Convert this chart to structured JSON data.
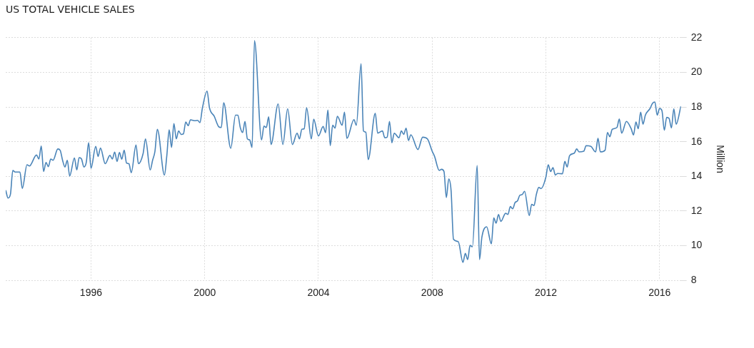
{
  "chart_data": {
    "type": "line",
    "title": "US TOTAL VEHICLE SALES",
    "ylabel": "Million",
    "xlim": [
      "1993-01",
      "2016-10"
    ],
    "xticks": [
      "1996",
      "2000",
      "2004",
      "2008",
      "2012",
      "2016"
    ],
    "ylim": [
      8,
      22
    ],
    "yticks": [
      8,
      10,
      12,
      14,
      16,
      18,
      20,
      22
    ],
    "grid": true,
    "legend": false,
    "marker": "none",
    "line_style": "solid",
    "series": [
      {
        "color": "#4a84b8",
        "x": [
          "1993-01",
          "1993-02",
          "1993-03",
          "1993-04",
          "1993-05",
          "1993-07",
          "1993-08",
          "1993-10",
          "1993-11",
          "1994-02",
          "1994-03",
          "1994-04",
          "1994-05",
          "1994-06",
          "1994-07",
          "1994-08",
          "1994-09",
          "1994-11",
          "1994-12",
          "1995-01",
          "1995-02",
          "1995-03",
          "1995-04",
          "1995-06",
          "1995-07",
          "1995-08",
          "1995-09",
          "1995-10",
          "1995-11",
          "1995-12",
          "1996-01",
          "1996-03",
          "1996-04",
          "1996-05",
          "1996-07",
          "1996-09",
          "1996-10",
          "1996-11",
          "1996-12",
          "1997-01",
          "1997-02",
          "1997-03",
          "1997-04",
          "1997-05",
          "1997-06",
          "1997-08",
          "1997-09",
          "1997-11",
          "1997-12",
          "1998-02",
          "1998-03",
          "1998-04",
          "1998-05",
          "1998-08",
          "1998-09",
          "1998-10",
          "1998-11",
          "1998-12",
          "1999-01",
          "1999-02",
          "1999-03",
          "1999-04",
          "1999-05",
          "1999-06",
          "1999-07",
          "1999-09",
          "1999-10",
          "1999-11",
          "1999-12",
          "2000-02",
          "2000-03",
          "2000-05",
          "2000-07",
          "2000-08",
          "2000-09",
          "2000-12",
          "2001-02",
          "2001-03",
          "2001-04",
          "2001-05",
          "2001-06",
          "2001-07",
          "2001-08",
          "2001-09",
          "2001-10",
          "2002-01",
          "2002-02",
          "2002-03",
          "2002-04",
          "2002-05",
          "2002-08",
          "2002-10",
          "2002-12",
          "2003-02",
          "2003-04",
          "2003-05",
          "2003-06",
          "2003-07",
          "2003-08",
          "2003-10",
          "2003-11",
          "2004-01",
          "2004-03",
          "2004-04",
          "2004-05",
          "2004-06",
          "2004-07",
          "2004-08",
          "2004-09",
          "2004-11",
          "2004-12",
          "2005-01",
          "2005-04",
          "2005-05",
          "2005-07",
          "2005-08",
          "2005-09",
          "2005-10",
          "2006-01",
          "2006-02",
          "2006-04",
          "2006-05",
          "2006-06",
          "2006-07",
          "2006-08",
          "2006-09",
          "2006-11",
          "2006-12",
          "2007-01",
          "2007-02",
          "2007-03",
          "2007-04",
          "2007-07",
          "2007-09",
          "2007-11",
          "2008-01",
          "2008-02",
          "2008-04",
          "2008-05",
          "2008-06",
          "2008-07",
          "2008-08",
          "2008-09",
          "2008-10",
          "2008-12",
          "2009-02",
          "2009-03",
          "2009-04",
          "2009-05",
          "2009-06",
          "2009-08",
          "2009-09",
          "2009-10",
          "2009-12",
          "2010-02",
          "2010-03",
          "2010-04",
          "2010-05",
          "2010-06",
          "2010-08",
          "2010-09",
          "2010-10",
          "2010-11",
          "2010-12",
          "2011-01",
          "2011-02",
          "2011-03",
          "2011-04",
          "2011-06",
          "2011-07",
          "2011-08",
          "2011-09",
          "2011-10",
          "2011-11",
          "2012-01",
          "2012-02",
          "2012-03",
          "2012-04",
          "2012-05",
          "2012-06",
          "2012-08",
          "2012-09",
          "2012-10",
          "2012-11",
          "2013-01",
          "2013-02",
          "2013-03",
          "2013-05",
          "2013-06",
          "2013-08",
          "2013-10",
          "2013-11",
          "2013-12",
          "2014-02",
          "2014-03",
          "2014-04",
          "2014-05",
          "2014-07",
          "2014-08",
          "2014-09",
          "2014-11",
          "2015-01",
          "2015-02",
          "2015-03",
          "2015-04",
          "2015-05",
          "2015-06",
          "2015-07",
          "2015-09",
          "2015-10",
          "2015-11",
          "2015-12",
          "2016-01",
          "2016-02",
          "2016-03",
          "2016-04",
          "2016-05",
          "2016-06",
          "2016-07",
          "2016-08",
          "2016-10"
        ],
        "values": [
          13.2,
          12.75,
          12.97,
          14.34,
          14.25,
          14.25,
          13.3,
          14.67,
          14.6,
          15.23,
          15.0,
          15.75,
          14.28,
          14.8,
          14.56,
          15.0,
          14.93,
          15.58,
          15.5,
          14.93,
          14.54,
          14.93,
          14.02,
          15.06,
          14.37,
          15.08,
          15.0,
          14.54,
          14.8,
          15.94,
          14.47,
          15.73,
          15.15,
          15.64,
          14.73,
          15.21,
          15.0,
          15.4,
          14.86,
          15.38,
          14.99,
          15.51,
          14.77,
          14.73,
          14.21,
          15.81,
          14.73,
          15.32,
          16.16,
          14.37,
          14.93,
          15.45,
          16.72,
          14.08,
          15.19,
          16.68,
          15.67,
          17.04,
          16.16,
          16.62,
          16.42,
          16.45,
          17.14,
          16.92,
          17.26,
          17.21,
          17.23,
          17.1,
          17.92,
          18.92,
          17.96,
          17.47,
          16.85,
          16.82,
          18.25,
          15.62,
          17.53,
          17.53,
          16.82,
          16.53,
          17.17,
          16.16,
          16.1,
          15.67,
          21.83,
          16.1,
          16.9,
          16.82,
          17.43,
          15.84,
          18.18,
          15.84,
          17.9,
          15.84,
          16.49,
          16.16,
          16.72,
          16.75,
          17.96,
          16.16,
          17.3,
          16.33,
          16.88,
          16.52,
          17.83,
          15.77,
          16.95,
          16.78,
          17.47,
          16.95,
          17.7,
          16.19,
          17.27,
          16.95,
          20.5,
          16.62,
          16.55,
          14.97,
          17.64,
          16.49,
          16.62,
          16.23,
          16.26,
          17.17,
          15.94,
          16.49,
          16.23,
          16.62,
          16.42,
          16.78,
          16.07,
          16.4,
          15.55,
          16.26,
          16.16,
          15.45,
          15.16,
          14.34,
          14.41,
          14.28,
          12.78,
          13.85,
          13.17,
          10.37,
          10.24,
          9.04,
          9.56,
          9.2,
          10.02,
          9.94,
          14.63,
          9.2,
          10.5,
          11.09,
          10.11,
          11.6,
          11.3,
          11.8,
          11.4,
          11.87,
          11.8,
          12.26,
          12.13,
          12.49,
          12.58,
          12.91,
          12.95,
          13.14,
          11.74,
          12.39,
          12.32,
          12.97,
          13.36,
          13.3,
          13.95,
          14.67,
          14.28,
          14.5,
          14.08,
          14.17,
          14.15,
          14.86,
          14.54,
          15.19,
          15.34,
          15.58,
          15.41,
          15.45,
          15.77,
          15.73,
          15.41,
          16.2,
          15.41,
          15.51,
          16.53,
          16.29,
          16.71,
          16.82,
          17.31,
          16.49,
          17.17,
          16.75,
          16.39,
          17.14,
          16.75,
          17.7,
          17.01,
          17.53,
          17.92,
          18.21,
          18.29,
          17.53,
          17.92,
          17.79,
          16.66,
          17.4,
          17.34,
          16.79,
          17.9,
          17.01,
          18.05
        ]
      }
    ]
  }
}
